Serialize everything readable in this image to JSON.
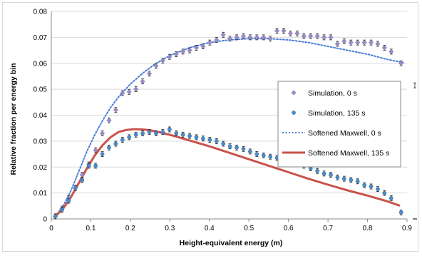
{
  "chart_data": {
    "type": "scatter",
    "xlabel": "Height-equivalent energy (m)",
    "ylabel": "Relative fraction per energy bin",
    "xlim": [
      0,
      0.9
    ],
    "ylim": [
      0,
      0.08
    ],
    "xticks": [
      "0",
      "0.1",
      "0.2",
      "0.3",
      "0.4",
      "0.5",
      "0.6",
      "0.7",
      "0.8",
      "0.9"
    ],
    "yticks": [
      "0",
      "0.01",
      "0.02",
      "0.03",
      "0.04",
      "0.05",
      "0.06",
      "0.07",
      "0.08"
    ],
    "grid": "horizontal",
    "legend_position": "right",
    "series": [
      {
        "name": "Simulation, 0 s",
        "kind": "markers",
        "marker": "diamond",
        "color": "#9b8cc4",
        "error_bars": true,
        "x": [
          0.01,
          0.027,
          0.044,
          0.061,
          0.078,
          0.095,
          0.112,
          0.129,
          0.146,
          0.163,
          0.18,
          0.197,
          0.214,
          0.231,
          0.248,
          0.265,
          0.282,
          0.299,
          0.316,
          0.333,
          0.35,
          0.367,
          0.384,
          0.401,
          0.418,
          0.435,
          0.452,
          0.469,
          0.486,
          0.503,
          0.52,
          0.537,
          0.554,
          0.571,
          0.588,
          0.605,
          0.622,
          0.639,
          0.656,
          0.673,
          0.69,
          0.707,
          0.724,
          0.741,
          0.758,
          0.775,
          0.792,
          0.809,
          0.826,
          0.843,
          0.86,
          0.885
        ],
        "y": [
          0.001,
          0.004,
          0.008,
          0.012,
          0.017,
          0.021,
          0.0265,
          0.033,
          0.038,
          0.042,
          0.0485,
          0.049,
          0.05,
          0.053,
          0.056,
          0.059,
          0.061,
          0.0625,
          0.0635,
          0.0645,
          0.065,
          0.066,
          0.0665,
          0.068,
          0.069,
          0.071,
          0.0695,
          0.07,
          0.0705,
          0.07,
          0.07,
          0.07,
          0.0695,
          0.0725,
          0.0725,
          0.0715,
          0.0715,
          0.0705,
          0.0705,
          0.0705,
          0.07,
          0.07,
          0.0675,
          0.0685,
          0.068,
          0.068,
          0.068,
          0.068,
          0.0675,
          0.066,
          0.0645,
          0.06
        ]
      },
      {
        "name": "Simulation, 135 s",
        "kind": "markers",
        "marker": "circle",
        "color": "#4a8cc9",
        "error_bars": true,
        "x": [
          0.01,
          0.027,
          0.044,
          0.061,
          0.078,
          0.095,
          0.112,
          0.129,
          0.146,
          0.163,
          0.18,
          0.197,
          0.214,
          0.231,
          0.248,
          0.265,
          0.282,
          0.299,
          0.316,
          0.333,
          0.35,
          0.367,
          0.384,
          0.401,
          0.418,
          0.435,
          0.452,
          0.469,
          0.486,
          0.503,
          0.52,
          0.537,
          0.554,
          0.571,
          0.588,
          0.605,
          0.622,
          0.639,
          0.656,
          0.673,
          0.69,
          0.707,
          0.724,
          0.741,
          0.758,
          0.775,
          0.792,
          0.809,
          0.826,
          0.843,
          0.86,
          0.885
        ],
        "y": [
          0.001,
          0.0035,
          0.007,
          0.012,
          0.015,
          0.0205,
          0.0205,
          0.025,
          0.0275,
          0.029,
          0.0305,
          0.0315,
          0.0325,
          0.033,
          0.0335,
          0.033,
          0.0335,
          0.0345,
          0.033,
          0.0325,
          0.032,
          0.0315,
          0.031,
          0.0305,
          0.03,
          0.029,
          0.028,
          0.0275,
          0.027,
          0.026,
          0.025,
          0.0245,
          0.024,
          0.0235,
          0.023,
          0.0215,
          0.021,
          0.0205,
          0.0195,
          0.0185,
          0.0175,
          0.017,
          0.016,
          0.0155,
          0.015,
          0.0145,
          0.013,
          0.0125,
          0.0115,
          0.01,
          0.008,
          0.0025
        ]
      },
      {
        "name": "Softened Maxwell, 0 s",
        "kind": "line",
        "dashed": true,
        "color": "#4a7fd9",
        "x": [
          0.01,
          0.03,
          0.05,
          0.07,
          0.09,
          0.11,
          0.13,
          0.15,
          0.17,
          0.2,
          0.23,
          0.26,
          0.3,
          0.35,
          0.4,
          0.45,
          0.5,
          0.55,
          0.6,
          0.65,
          0.7,
          0.75,
          0.8,
          0.85,
          0.89
        ],
        "y": [
          0.001,
          0.005,
          0.011,
          0.0185,
          0.026,
          0.0325,
          0.038,
          0.043,
          0.047,
          0.052,
          0.056,
          0.0595,
          0.063,
          0.066,
          0.068,
          0.069,
          0.0695,
          0.0695,
          0.069,
          0.068,
          0.0665,
          0.065,
          0.0635,
          0.0615,
          0.0603
        ]
      },
      {
        "name": "Softened Maxwell, 135 s",
        "kind": "line",
        "dashed": false,
        "color": "#c9534b",
        "x": [
          0.01,
          0.03,
          0.05,
          0.07,
          0.09,
          0.11,
          0.13,
          0.15,
          0.17,
          0.19,
          0.21,
          0.23,
          0.25,
          0.28,
          0.31,
          0.35,
          0.4,
          0.45,
          0.5,
          0.55,
          0.6,
          0.65,
          0.7,
          0.75,
          0.8,
          0.85,
          0.88
        ],
        "y": [
          0.001,
          0.004,
          0.0085,
          0.014,
          0.0195,
          0.0245,
          0.0285,
          0.0315,
          0.0335,
          0.0343,
          0.0346,
          0.0345,
          0.0342,
          0.0332,
          0.032,
          0.0302,
          0.028,
          0.0255,
          0.023,
          0.0205,
          0.018,
          0.0155,
          0.0132,
          0.011,
          0.009,
          0.0068,
          0.0052
        ]
      }
    ]
  }
}
